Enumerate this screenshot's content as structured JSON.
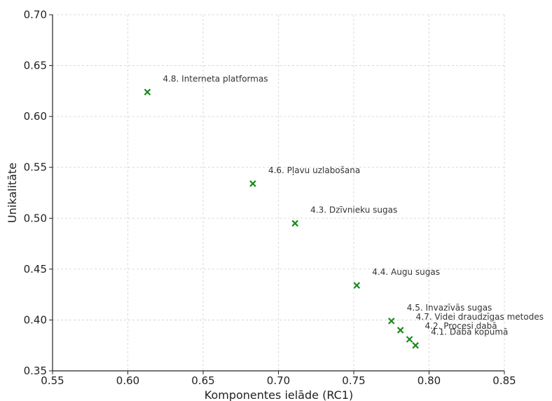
{
  "chart_data": {
    "type": "scatter",
    "title": "",
    "xlabel": "Komponentes ielāde (RC1)",
    "ylabel": "Unikalitāte",
    "xlim": [
      0.55,
      0.85
    ],
    "ylim": [
      0.35,
      0.7
    ],
    "xticks": [
      "0.55",
      "0.60",
      "0.65",
      "0.70",
      "0.75",
      "0.80",
      "0.85"
    ],
    "yticks": [
      "0.35",
      "0.40",
      "0.45",
      "0.50",
      "0.55",
      "0.60",
      "0.65",
      "0.70"
    ],
    "grid": true,
    "marker_color": "#1a8a1a",
    "points": [
      {
        "label": "4.8. Interneta platformas",
        "x": 0.613,
        "y": 0.624
      },
      {
        "label": "4.6. Pļavu uzlabošana",
        "x": 0.683,
        "y": 0.534
      },
      {
        "label": "4.3. Dzīvnieku sugas",
        "x": 0.711,
        "y": 0.495
      },
      {
        "label": "4.4. Augu sugas",
        "x": 0.752,
        "y": 0.434
      },
      {
        "label": "4.5. Invazīvās sugas",
        "x": 0.775,
        "y": 0.399
      },
      {
        "label": "4.7. Videi draudzīgas metodes",
        "x": 0.781,
        "y": 0.39
      },
      {
        "label": "4.2. Procesi dabā",
        "x": 0.787,
        "y": 0.381
      },
      {
        "label": "4.1. Dabā kopumā",
        "x": 0.791,
        "y": 0.375
      }
    ]
  }
}
